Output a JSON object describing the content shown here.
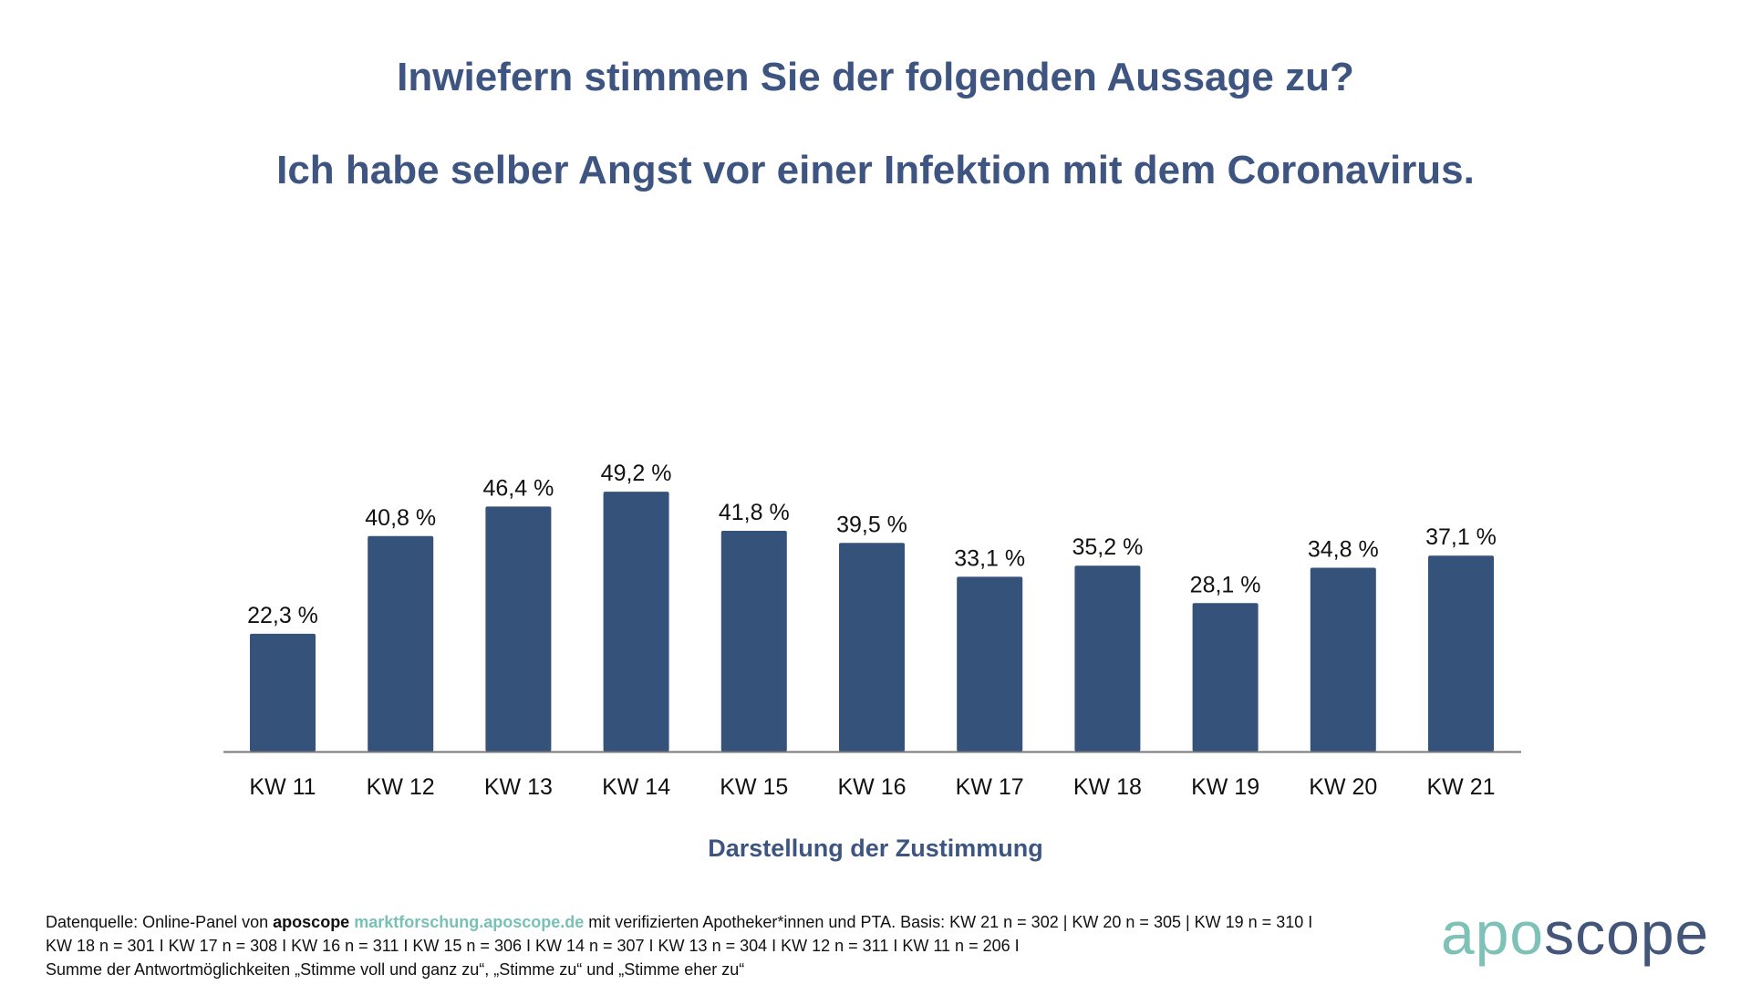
{
  "chart_data": {
    "type": "bar",
    "title": "Inwiefern stimmen Sie der folgenden Aussage zu?",
    "subtitle": "Ich habe selber Angst vor einer Infektion mit dem Coronavirus.",
    "xlabel": "Darstellung der Zustimmung",
    "ylabel": "",
    "categories": [
      "KW 11",
      "KW 12",
      "KW 13",
      "KW 14",
      "KW 15",
      "KW 16",
      "KW 17",
      "KW 18",
      "KW 19",
      "KW 20",
      "KW 21"
    ],
    "values": [
      22.3,
      40.8,
      46.4,
      49.2,
      41.8,
      39.5,
      33.1,
      35.2,
      28.1,
      34.8,
      37.1
    ],
    "data_labels": [
      "22,3 %",
      "40,8 %",
      "46,4 %",
      "49,2 %",
      "41,8 %",
      "39,5 %",
      "33,1 %",
      "35,2 %",
      "28,1 %",
      "34,8 %",
      "37,1 %"
    ],
    "grid": false,
    "legend": "none",
    "bar_color": "#35527a"
  },
  "footnote": {
    "line1_prefix": "Datenquelle: Online-Panel von ",
    "line1_brand": "aposcope",
    "line1_link": "marktforschung.aposcope.de",
    "line1_suffix": " mit verifizierten Apotheker*innen und PTA. Basis: KW 21 n = 302 | KW 20 n = 305 | KW 19 n = 310 I",
    "line2": "KW 18 n = 301 I KW 17 n = 308 I KW 16 n = 311 I KW 15 n = 306 I KW 14 n = 307 I KW 13 n = 304 I KW 12 n = 311 I KW 11 n = 206 I",
    "line3": "Summe der Antwortmöglichkeiten „Stimme voll und ganz zu“, „Stimme zu“ und „Stimme eher zu“"
  },
  "logo": {
    "part1": "apo",
    "part2": "scope"
  },
  "colors": {
    "title": "#3d5580",
    "accent": "#78c1b6"
  }
}
